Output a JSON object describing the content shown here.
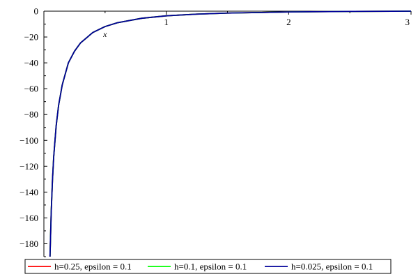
{
  "chart_data": {
    "type": "line",
    "title": "",
    "xlabel": "x",
    "ylabel": "",
    "xlim": [
      0,
      3
    ],
    "ylim": [
      -190,
      0
    ],
    "x_ticks": [
      1,
      2,
      3
    ],
    "x_tick_labels": [
      "1",
      "2",
      "3"
    ],
    "y_ticks": [
      0,
      -20,
      -40,
      -60,
      -80,
      -100,
      -120,
      -140,
      -160,
      -180
    ],
    "y_tick_labels": [
      "0",
      "−20",
      "−40",
      "−60",
      "−80",
      "−100",
      "−120",
      "−140",
      "−160",
      "−180"
    ],
    "grid": false,
    "legend_position": "bottom",
    "x": [
      0.05,
      0.06,
      0.07,
      0.08,
      0.1,
      0.12,
      0.15,
      0.2,
      0.25,
      0.3,
      0.4,
      0.5,
      0.6,
      0.8,
      1.0,
      1.25,
      1.5,
      2.0,
      2.5,
      3.0
    ],
    "series": [
      {
        "name": "h=0.25, epsilon = 0.1",
        "color": "#ff0000",
        "y": [
          -190,
          -155,
          -131,
          -113,
          -89,
          -73,
          -57,
          -40,
          -31,
          -24.5,
          -16.5,
          -11.9,
          -9.0,
          -5.5,
          -3.6,
          -2.3,
          -1.5,
          -0.6,
          -0.2,
          0
        ]
      },
      {
        "name": "h=0.1, epsilon = 0.1",
        "color": "#00ff00",
        "y": [
          -190,
          -155,
          -131,
          -113,
          -89,
          -73,
          -57,
          -40,
          -31,
          -24.5,
          -16.5,
          -11.9,
          -9.0,
          -5.5,
          -3.6,
          -2.3,
          -1.5,
          -0.6,
          -0.2,
          0
        ]
      },
      {
        "name": "h=0.025, epsilon = 0.1",
        "color": "#000099",
        "y": [
          -190,
          -155,
          -131,
          -113,
          -89,
          -73,
          -57,
          -40,
          -31,
          -24.5,
          -16.5,
          -11.9,
          -9.0,
          -5.5,
          -3.6,
          -2.3,
          -1.5,
          -0.6,
          -0.2,
          0
        ]
      }
    ]
  }
}
